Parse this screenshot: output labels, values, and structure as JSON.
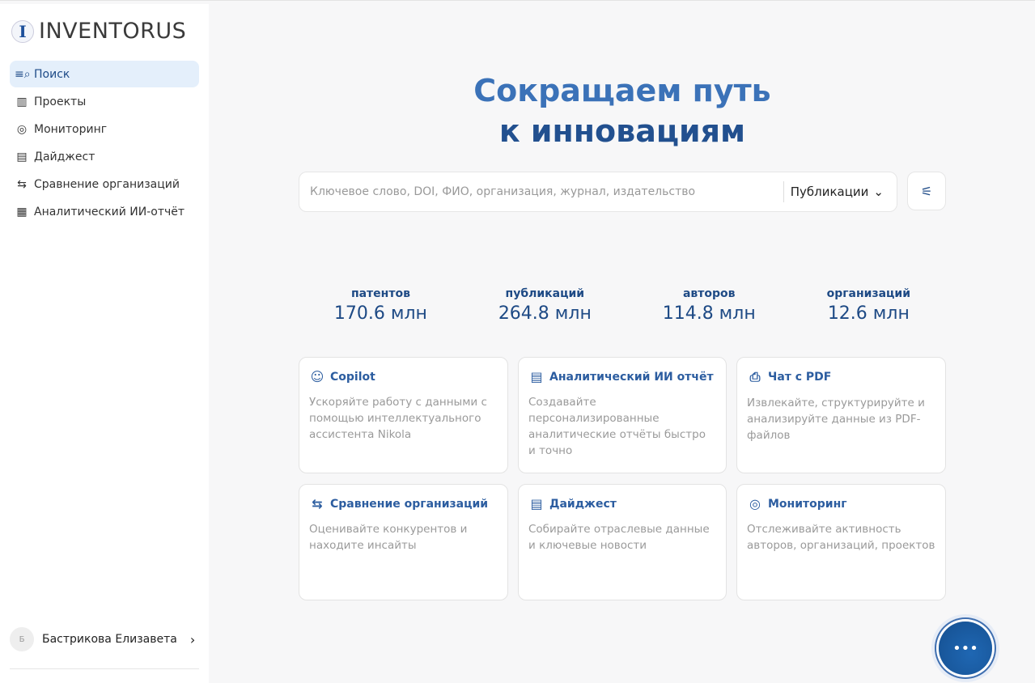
{
  "app": {
    "logo_letter": "I",
    "name": "INVENTORUS"
  },
  "sidebar": {
    "items": [
      {
        "label": "Поиск",
        "icon": "search-list-icon",
        "glyph": "≡⌕",
        "active": true
      },
      {
        "label": "Проекты",
        "icon": "books-icon",
        "glyph": "▥"
      },
      {
        "label": "Мониторинг",
        "icon": "monitoring-icon",
        "glyph": "◎"
      },
      {
        "label": "Дайджест",
        "icon": "digest-icon",
        "glyph": "▤"
      },
      {
        "label": "Сравнение организаций",
        "icon": "compare-arrows-icon",
        "glyph": "⇆"
      },
      {
        "label": "Аналитический ИИ-отчёт",
        "icon": "chart-report-icon",
        "glyph": "▦"
      }
    ]
  },
  "user": {
    "initial": "Б",
    "name": "Бастрикова Елизавета"
  },
  "hero": {
    "line1": "Сокращаем путь",
    "line2": "к инновациям"
  },
  "search": {
    "placeholder": "Ключевое слово, DOI, ФИО, организация, журнал, издательство",
    "value": "",
    "type_selected": "Публикации"
  },
  "stats": [
    {
      "label": "патентов",
      "value": "170.6 млн"
    },
    {
      "label": "публикаций",
      "value": "264.8 млн"
    },
    {
      "label": "авторов",
      "value": "114.8 млн"
    },
    {
      "label": "организаций",
      "value": "12.6 млн"
    }
  ],
  "cards": [
    {
      "title": "Copilot",
      "icon": "copilot-icon",
      "glyph": "☺",
      "desc": "Ускоряйте работу с данными с помощью интеллектуального ассистента Nikola"
    },
    {
      "title": "Аналитический ИИ отчёт",
      "icon": "ai-report-icon",
      "glyph": "▤",
      "desc": "Создавайте персонализированные аналитические отчёты быстро и точно"
    },
    {
      "title": "Чат с PDF",
      "icon": "pdf-chat-icon",
      "glyph": "⎙",
      "desc": "Извлекайте, структурируйте и анализируйте данные из PDF-файлов"
    },
    {
      "title": "Сравнение организаций",
      "icon": "compare-arrows-icon",
      "glyph": "⇆",
      "desc": "Оценивайте конкурентов и находите инсайты"
    },
    {
      "title": "Дайджест",
      "icon": "digest-icon",
      "glyph": "▤",
      "desc": "Собирайте отраслевые данные и ключевые новости"
    },
    {
      "title": "Мониторинг",
      "icon": "monitoring-icon",
      "glyph": "◎",
      "desc": "Отслеживайте активность авторов, организаций, проектов"
    }
  ],
  "colors": {
    "accent": "#1d4a87",
    "active_bg": "#e4effb",
    "hero_light": "#3b72b8",
    "hero_dark": "#22508f"
  }
}
